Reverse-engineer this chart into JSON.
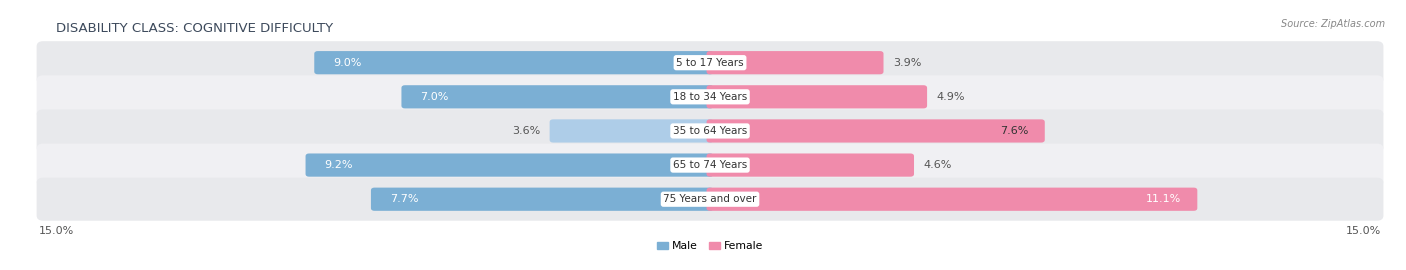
{
  "title": "DISABILITY CLASS: COGNITIVE DIFFICULTY",
  "source": "Source: ZipAtlas.com",
  "categories": [
    "5 to 17 Years",
    "18 to 34 Years",
    "35 to 64 Years",
    "65 to 74 Years",
    "75 Years and over"
  ],
  "male_values": [
    9.0,
    7.0,
    3.6,
    9.2,
    7.7
  ],
  "female_values": [
    3.9,
    4.9,
    7.6,
    4.6,
    11.1
  ],
  "male_color": "#7bafd4",
  "female_color": "#f08bab",
  "male_color_light": "#aecde8",
  "female_color_light": "#f5b8cc",
  "male_label": "Male",
  "female_label": "Female",
  "x_max": 15.0,
  "bar_height": 0.52,
  "row_bg_colors": [
    "#e8e9ec",
    "#f0f0f3",
    "#e8e9ec",
    "#f0f0f3",
    "#e8e9ec"
  ],
  "background_color": "#ffffff",
  "title_fontsize": 9.5,
  "title_color": "#3d4a5c",
  "label_fontsize": 7.8,
  "tick_fontsize": 8,
  "source_fontsize": 7,
  "source_color": "#888888",
  "cat_label_fontsize": 7.5,
  "value_label_fontsize": 8
}
